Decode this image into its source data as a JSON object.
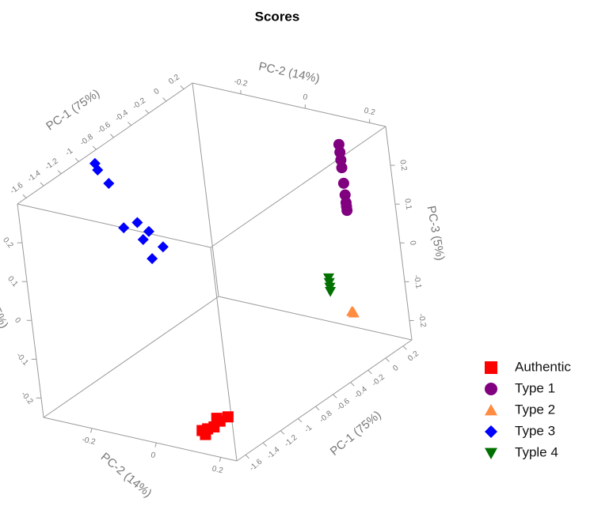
{
  "chart_data": {
    "type": "scatter3d",
    "title": "Scores",
    "xlabel": "PC-1 (75%)",
    "ylabel": "PC-2 (14%)",
    "zlabel": "PC-3 (5%)",
    "xlim": [
      -1.7,
      0.3
    ],
    "ylim": [
      -0.35,
      0.25
    ],
    "zlim": [
      -0.25,
      0.3
    ],
    "xticks": [
      -1.6,
      -1.4,
      -1.2,
      -1,
      -0.8,
      -0.6,
      -0.4,
      -0.2,
      0,
      0.2
    ],
    "yticks": [
      -0.2,
      0,
      0.2
    ],
    "zticks": [
      -0.2,
      -0.1,
      0,
      0.1,
      0.2
    ],
    "series": [
      {
        "name": "Authentic",
        "color": "#ff0000",
        "marker": "square",
        "x": [
          -1.63,
          -1.57,
          -1.5,
          -1.43,
          -1.34,
          -1.6,
          -1.46
        ],
        "y": [
          0.13,
          0.13,
          0.13,
          0.13,
          0.13,
          0.13,
          0.13
        ],
        "z": [
          -0.205,
          -0.21,
          -0.216,
          -0.212,
          -0.215,
          -0.22,
          -0.2
        ]
      },
      {
        "name": "Type 1",
        "color": "#800080",
        "marker": "circle",
        "x": [
          0.18,
          0.18,
          0.18,
          0.18,
          0.18,
          0.18,
          0.18,
          0.18,
          0.18
        ],
        "y": [
          0.13,
          0.13,
          0.13,
          0.13,
          0.13,
          0.13,
          0.13,
          0.13,
          0.13
        ],
        "z": [
          0.25,
          0.23,
          0.21,
          0.19,
          0.15,
          0.12,
          0.1,
          0.09,
          0.08
        ]
      },
      {
        "name": "Type 2",
        "color": "#ff8c40",
        "marker": "triangle",
        "x": [
          0.11,
          0.12,
          0.1
        ],
        "y": [
          0.13,
          0.13,
          0.13
        ],
        "z": [
          -0.17,
          -0.175,
          -0.168
        ]
      },
      {
        "name": "Type 3",
        "color": "#0000ff",
        "marker": "diamond",
        "x": [
          -0.93,
          -0.91,
          -0.81,
          -0.56,
          -0.71,
          -0.52,
          -0.45,
          -0.32,
          -0.45
        ],
        "y": [
          -0.32,
          -0.32,
          -0.32,
          -0.32,
          -0.32,
          -0.32,
          -0.32,
          -0.32,
          -0.32
        ],
        "z": [
          0.29,
          0.27,
          0.22,
          0.08,
          0.09,
          0.03,
          0.04,
          -0.02,
          -0.03
        ]
      },
      {
        "name": "Typle 4",
        "color": "#007000",
        "marker": "down-triangle",
        "x": [
          -0.1,
          -0.1,
          -0.1,
          -0.1
        ],
        "y": [
          0.13,
          0.13,
          0.13,
          0.13
        ],
        "z": [
          -0.05,
          -0.062,
          -0.074,
          -0.085
        ]
      }
    ]
  }
}
